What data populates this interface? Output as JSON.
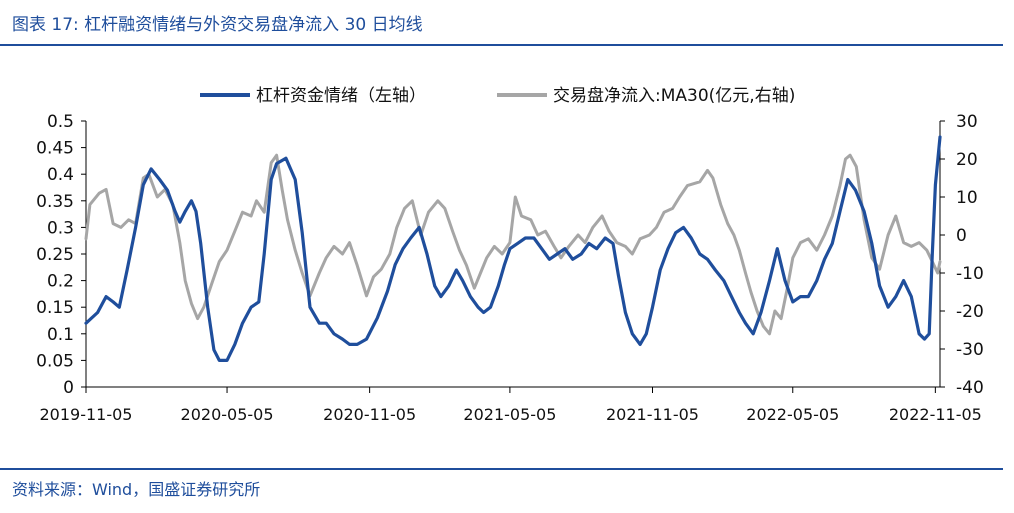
{
  "figure": {
    "title": "图表 17:  杠杆融资情绪与外资交易盘净流入 30 日均线",
    "source": "资料来源：Wind，国盛证券研究所"
  },
  "chart_data": {
    "type": "line",
    "legend_position": "top",
    "grid": false,
    "x_ticks": [
      "2019-11-05",
      "2020-05-05",
      "2020-11-05",
      "2021-05-05",
      "2021-11-05",
      "2022-05-05",
      "2022-11-05"
    ],
    "x_range": [
      "2019-11-05",
      "2022-11-11"
    ],
    "y_left": {
      "range": [
        0,
        0.5
      ],
      "ticks": [
        "0",
        "0.05",
        "0.1",
        "0.15",
        "0.2",
        "0.25",
        "0.3",
        "0.35",
        "0.4",
        "0.45",
        "0.5"
      ]
    },
    "y_right": {
      "range": [
        -40,
        30
      ],
      "ticks": [
        "-40",
        "-30",
        "-20",
        "-10",
        "0",
        "10",
        "20",
        "30"
      ]
    },
    "series": [
      {
        "name": "杠杆资金情绪（左轴）",
        "axis": "left",
        "color": "#1f4e9c",
        "points": [
          [
            "2019-11-05",
            0.12
          ],
          [
            "2019-11-20",
            0.14
          ],
          [
            "2019-12-01",
            0.17
          ],
          [
            "2019-12-10",
            0.16
          ],
          [
            "2019-12-18",
            0.15
          ],
          [
            "2019-12-28",
            0.22
          ],
          [
            "2020-01-08",
            0.3
          ],
          [
            "2020-01-18",
            0.38
          ],
          [
            "2020-01-28",
            0.41
          ],
          [
            "2020-02-08",
            0.39
          ],
          [
            "2020-02-18",
            0.37
          ],
          [
            "2020-02-28",
            0.33
          ],
          [
            "2020-03-05",
            0.31
          ],
          [
            "2020-03-12",
            0.33
          ],
          [
            "2020-03-20",
            0.35
          ],
          [
            "2020-03-26",
            0.33
          ],
          [
            "2020-04-01",
            0.27
          ],
          [
            "2020-04-10",
            0.15
          ],
          [
            "2020-04-18",
            0.07
          ],
          [
            "2020-04-25",
            0.05
          ],
          [
            "2020-05-05",
            0.05
          ],
          [
            "2020-05-15",
            0.08
          ],
          [
            "2020-05-25",
            0.12
          ],
          [
            "2020-06-05",
            0.15
          ],
          [
            "2020-06-15",
            0.16
          ],
          [
            "2020-06-22",
            0.25
          ],
          [
            "2020-07-01",
            0.39
          ],
          [
            "2020-07-08",
            0.42
          ],
          [
            "2020-07-20",
            0.43
          ],
          [
            "2020-08-01",
            0.39
          ],
          [
            "2020-08-10",
            0.29
          ],
          [
            "2020-08-20",
            0.15
          ],
          [
            "2020-09-01",
            0.12
          ],
          [
            "2020-09-10",
            0.12
          ],
          [
            "2020-09-20",
            0.1
          ],
          [
            "2020-10-01",
            0.09
          ],
          [
            "2020-10-10",
            0.08
          ],
          [
            "2020-10-20",
            0.08
          ],
          [
            "2020-11-01",
            0.09
          ],
          [
            "2020-11-15",
            0.13
          ],
          [
            "2020-11-28",
            0.18
          ],
          [
            "2020-12-08",
            0.23
          ],
          [
            "2020-12-18",
            0.26
          ],
          [
            "2020-12-28",
            0.28
          ],
          [
            "2021-01-08",
            0.3
          ],
          [
            "2021-01-18",
            0.25
          ],
          [
            "2021-01-28",
            0.19
          ],
          [
            "2021-02-05",
            0.17
          ],
          [
            "2021-02-15",
            0.19
          ],
          [
            "2021-02-25",
            0.22
          ],
          [
            "2021-03-05",
            0.2
          ],
          [
            "2021-03-15",
            0.17
          ],
          [
            "2021-03-25",
            0.15
          ],
          [
            "2021-04-01",
            0.14
          ],
          [
            "2021-04-10",
            0.15
          ],
          [
            "2021-04-20",
            0.19
          ],
          [
            "2021-04-28",
            0.23
          ],
          [
            "2021-05-05",
            0.26
          ],
          [
            "2021-05-15",
            0.27
          ],
          [
            "2021-05-25",
            0.28
          ],
          [
            "2021-06-05",
            0.28
          ],
          [
            "2021-06-15",
            0.26
          ],
          [
            "2021-06-25",
            0.24
          ],
          [
            "2021-07-05",
            0.25
          ],
          [
            "2021-07-15",
            0.26
          ],
          [
            "2021-07-25",
            0.24
          ],
          [
            "2021-08-05",
            0.25
          ],
          [
            "2021-08-15",
            0.27
          ],
          [
            "2021-08-25",
            0.26
          ],
          [
            "2021-09-05",
            0.28
          ],
          [
            "2021-09-15",
            0.27
          ],
          [
            "2021-09-22",
            0.21
          ],
          [
            "2021-10-01",
            0.14
          ],
          [
            "2021-10-10",
            0.1
          ],
          [
            "2021-10-20",
            0.08
          ],
          [
            "2021-10-28",
            0.1
          ],
          [
            "2021-11-05",
            0.15
          ],
          [
            "2021-11-15",
            0.22
          ],
          [
            "2021-11-25",
            0.26
          ],
          [
            "2021-12-05",
            0.29
          ],
          [
            "2021-12-15",
            0.3
          ],
          [
            "2021-12-25",
            0.28
          ],
          [
            "2022-01-05",
            0.25
          ],
          [
            "2022-01-15",
            0.24
          ],
          [
            "2022-01-25",
            0.22
          ],
          [
            "2022-02-05",
            0.2
          ],
          [
            "2022-02-15",
            0.17
          ],
          [
            "2022-02-25",
            0.14
          ],
          [
            "2022-03-05",
            0.12
          ],
          [
            "2022-03-15",
            0.1
          ],
          [
            "2022-03-25",
            0.14
          ],
          [
            "2022-04-05",
            0.2
          ],
          [
            "2022-04-15",
            0.26
          ],
          [
            "2022-04-25",
            0.2
          ],
          [
            "2022-05-05",
            0.16
          ],
          [
            "2022-05-15",
            0.17
          ],
          [
            "2022-05-25",
            0.17
          ],
          [
            "2022-06-05",
            0.2
          ],
          [
            "2022-06-15",
            0.24
          ],
          [
            "2022-06-25",
            0.27
          ],
          [
            "2022-07-05",
            0.33
          ],
          [
            "2022-07-15",
            0.39
          ],
          [
            "2022-07-25",
            0.37
          ],
          [
            "2022-08-05",
            0.33
          ],
          [
            "2022-08-15",
            0.27
          ],
          [
            "2022-08-25",
            0.19
          ],
          [
            "2022-09-05",
            0.15
          ],
          [
            "2022-09-15",
            0.17
          ],
          [
            "2022-09-25",
            0.2
          ],
          [
            "2022-10-05",
            0.17
          ],
          [
            "2022-10-15",
            0.1
          ],
          [
            "2022-10-22",
            0.09
          ],
          [
            "2022-10-28",
            0.1
          ],
          [
            "2022-11-01",
            0.25
          ],
          [
            "2022-11-05",
            0.38
          ],
          [
            "2022-11-11",
            0.47
          ]
        ]
      },
      {
        "name": "交易盘净流入:MA30(亿元,右轴)",
        "axis": "right",
        "color": "#a6a6a6",
        "points": [
          [
            "2019-11-05",
            -1
          ],
          [
            "2019-11-10",
            8
          ],
          [
            "2019-11-22",
            11
          ],
          [
            "2019-12-01",
            12
          ],
          [
            "2019-12-10",
            3
          ],
          [
            "2019-12-20",
            2
          ],
          [
            "2019-12-30",
            4
          ],
          [
            "2020-01-08",
            3
          ],
          [
            "2020-01-18",
            15
          ],
          [
            "2020-01-25",
            16
          ],
          [
            "2020-02-05",
            10
          ],
          [
            "2020-02-15",
            12
          ],
          [
            "2020-02-25",
            8
          ],
          [
            "2020-03-05",
            -2
          ],
          [
            "2020-03-12",
            -12
          ],
          [
            "2020-03-20",
            -18
          ],
          [
            "2020-03-28",
            -22
          ],
          [
            "2020-04-05",
            -19
          ],
          [
            "2020-04-15",
            -13
          ],
          [
            "2020-04-25",
            -7
          ],
          [
            "2020-05-05",
            -4
          ],
          [
            "2020-05-15",
            1
          ],
          [
            "2020-05-25",
            6
          ],
          [
            "2020-06-05",
            5
          ],
          [
            "2020-06-12",
            9
          ],
          [
            "2020-06-22",
            6
          ],
          [
            "2020-07-01",
            19
          ],
          [
            "2020-07-08",
            21
          ],
          [
            "2020-07-15",
            12
          ],
          [
            "2020-07-22",
            4
          ],
          [
            "2020-08-01",
            -4
          ],
          [
            "2020-08-10",
            -10
          ],
          [
            "2020-08-20",
            -16
          ],
          [
            "2020-09-01",
            -10
          ],
          [
            "2020-09-10",
            -6
          ],
          [
            "2020-09-20",
            -3
          ],
          [
            "2020-10-01",
            -5
          ],
          [
            "2020-10-10",
            -2
          ],
          [
            "2020-10-20",
            -8
          ],
          [
            "2020-11-01",
            -16
          ],
          [
            "2020-11-10",
            -11
          ],
          [
            "2020-11-20",
            -9
          ],
          [
            "2020-12-01",
            -5
          ],
          [
            "2020-12-10",
            2
          ],
          [
            "2020-12-20",
            7
          ],
          [
            "2020-12-30",
            9
          ],
          [
            "2021-01-10",
            0
          ],
          [
            "2021-01-20",
            6
          ],
          [
            "2021-02-01",
            9
          ],
          [
            "2021-02-10",
            7
          ],
          [
            "2021-02-20",
            1
          ],
          [
            "2021-03-01",
            -4
          ],
          [
            "2021-03-10",
            -8
          ],
          [
            "2021-03-20",
            -14
          ],
          [
            "2021-03-28",
            -10
          ],
          [
            "2021-04-05",
            -6
          ],
          [
            "2021-04-15",
            -3
          ],
          [
            "2021-04-25",
            -5
          ],
          [
            "2021-05-05",
            -2
          ],
          [
            "2021-05-12",
            10
          ],
          [
            "2021-05-20",
            5
          ],
          [
            "2021-06-01",
            4
          ],
          [
            "2021-06-10",
            0
          ],
          [
            "2021-06-20",
            1
          ],
          [
            "2021-07-01",
            -3
          ],
          [
            "2021-07-10",
            -6
          ],
          [
            "2021-07-20",
            -3
          ],
          [
            "2021-08-01",
            0
          ],
          [
            "2021-08-10",
            -2
          ],
          [
            "2021-08-20",
            2
          ],
          [
            "2021-09-01",
            5
          ],
          [
            "2021-09-10",
            1
          ],
          [
            "2021-09-20",
            -2
          ],
          [
            "2021-10-01",
            -3
          ],
          [
            "2021-10-10",
            -5
          ],
          [
            "2021-10-20",
            -1
          ],
          [
            "2021-11-01",
            0
          ],
          [
            "2021-11-10",
            2
          ],
          [
            "2021-11-20",
            6
          ],
          [
            "2021-12-01",
            7
          ],
          [
            "2021-12-10",
            10
          ],
          [
            "2021-12-20",
            13
          ],
          [
            "2022-01-05",
            14
          ],
          [
            "2022-01-15",
            17
          ],
          [
            "2022-01-22",
            15
          ],
          [
            "2022-02-01",
            8
          ],
          [
            "2022-02-10",
            3
          ],
          [
            "2022-02-18",
            0
          ],
          [
            "2022-02-25",
            -4
          ],
          [
            "2022-03-05",
            -10
          ],
          [
            "2022-03-12",
            -15
          ],
          [
            "2022-03-20",
            -20
          ],
          [
            "2022-03-28",
            -24
          ],
          [
            "2022-04-05",
            -26
          ],
          [
            "2022-04-12",
            -20
          ],
          [
            "2022-04-20",
            -22
          ],
          [
            "2022-04-28",
            -14
          ],
          [
            "2022-05-05",
            -6
          ],
          [
            "2022-05-15",
            -2
          ],
          [
            "2022-05-25",
            -1
          ],
          [
            "2022-06-05",
            -4
          ],
          [
            "2022-06-15",
            0
          ],
          [
            "2022-06-25",
            5
          ],
          [
            "2022-07-05",
            13
          ],
          [
            "2022-07-12",
            20
          ],
          [
            "2022-07-18",
            21
          ],
          [
            "2022-07-26",
            18
          ],
          [
            "2022-08-05",
            4
          ],
          [
            "2022-08-15",
            -6
          ],
          [
            "2022-08-25",
            -9
          ],
          [
            "2022-09-05",
            0
          ],
          [
            "2022-09-15",
            5
          ],
          [
            "2022-09-25",
            -2
          ],
          [
            "2022-10-05",
            -3
          ],
          [
            "2022-10-15",
            -2
          ],
          [
            "2022-10-25",
            -4
          ],
          [
            "2022-11-01",
            -7
          ],
          [
            "2022-11-08",
            -10
          ],
          [
            "2022-11-11",
            -7
          ]
        ]
      }
    ]
  }
}
